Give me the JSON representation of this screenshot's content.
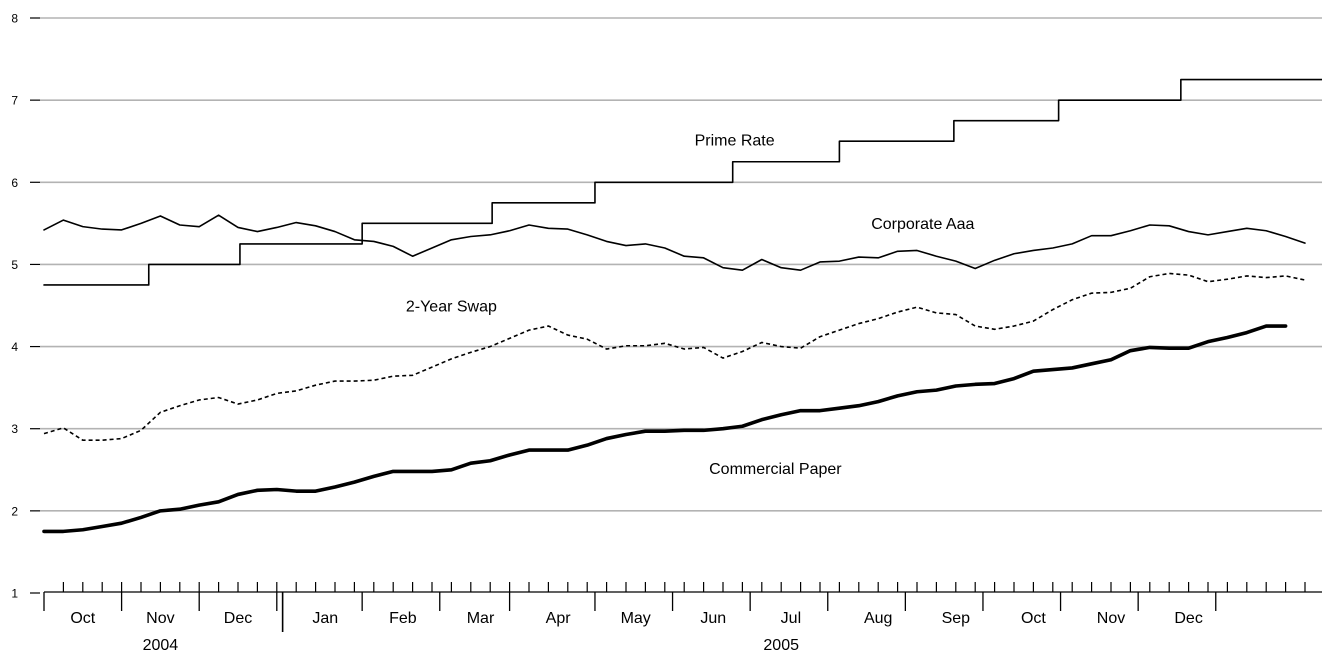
{
  "chart_data": {
    "type": "line",
    "title": "",
    "xlabel": "",
    "ylabel": "",
    "ylim": [
      1,
      8
    ],
    "yticks": [
      1,
      2,
      3,
      4,
      5,
      6,
      7,
      8
    ],
    "grid": true,
    "legend": "none",
    "x_range_weeks": [
      0,
      66.5
    ],
    "month_labels": [
      {
        "label": "Oct",
        "week": 2
      },
      {
        "label": "Nov",
        "week": 6
      },
      {
        "label": "Dec",
        "week": 10
      },
      {
        "label": "Jan",
        "week": 14.5
      },
      {
        "label": "Feb",
        "week": 18.5
      },
      {
        "label": "Mar",
        "week": 22.5
      },
      {
        "label": "Apr",
        "week": 26.5
      },
      {
        "label": "May",
        "week": 30.5
      },
      {
        "label": "Jun",
        "week": 34.5
      },
      {
        "label": "Jul",
        "week": 38.5
      },
      {
        "label": "Aug",
        "week": 43
      },
      {
        "label": "Sep",
        "week": 47
      },
      {
        "label": "Oct",
        "week": 51
      },
      {
        "label": "Nov",
        "week": 55
      },
      {
        "label": "Dec",
        "week": 59
      }
    ],
    "year_labels": [
      {
        "label": "2004",
        "week": 6
      },
      {
        "label": "2005",
        "week": 38
      }
    ],
    "month_boundaries": [
      0,
      4,
      8,
      12,
      16.4,
      20.4,
      24,
      28.4,
      32.4,
      36.4,
      40.4,
      44.4,
      48.4,
      52.4,
      56.4,
      60.4
    ],
    "year_boundary": 12.3,
    "annotations": [
      {
        "text": "Prime Rate",
        "week": 35.6,
        "value": 6.45
      },
      {
        "text": "Corporate Aaa",
        "week": 45.3,
        "value": 5.43
      },
      {
        "text": "2-Year Swap",
        "week": 21,
        "value": 4.43
      },
      {
        "text": "Commercial Paper",
        "week": 37.7,
        "value": 2.45
      }
    ],
    "series": [
      {
        "name": "Prime Rate",
        "style": "step",
        "color": "#000000",
        "points": [
          [
            0,
            4.75
          ],
          [
            5.4,
            5.0
          ],
          [
            10.1,
            5.25
          ],
          [
            16.4,
            5.5
          ],
          [
            23.1,
            5.75
          ],
          [
            28.4,
            6.0
          ],
          [
            35.5,
            6.25
          ],
          [
            41,
            6.5
          ],
          [
            46.9,
            6.75
          ],
          [
            52.3,
            7.0
          ],
          [
            58.6,
            7.25
          ],
          [
            60.2,
            7.25
          ]
        ]
      },
      {
        "name": "Corporate Aaa",
        "style": "solid",
        "color": "#000000",
        "values": [
          5.42,
          5.54,
          5.46,
          5.43,
          5.42,
          5.5,
          5.59,
          5.48,
          5.46,
          5.6,
          5.45,
          5.4,
          5.45,
          5.51,
          5.47,
          5.4,
          5.3,
          5.28,
          5.22,
          5.1,
          5.2,
          5.3,
          5.34,
          5.36,
          5.41,
          5.48,
          5.44,
          5.43,
          5.36,
          5.28,
          5.23,
          5.25,
          5.2,
          5.1,
          5.08,
          4.96,
          4.93,
          5.06,
          4.96,
          4.93,
          5.03,
          5.04,
          5.09,
          5.08,
          5.16,
          5.17,
          5.1,
          5.04,
          4.95,
          5.05,
          5.13,
          5.17,
          5.2,
          5.25,
          5.35,
          5.35,
          5.41,
          5.48,
          5.47,
          5.4,
          5.36,
          5.4,
          5.44,
          5.41,
          5.34,
          5.26
        ]
      },
      {
        "name": "2-Year Swap",
        "style": "dashed",
        "color": "#000000",
        "values": [
          2.94,
          3.01,
          2.86,
          2.86,
          2.88,
          2.98,
          3.2,
          3.28,
          3.35,
          3.38,
          3.3,
          3.35,
          3.43,
          3.46,
          3.53,
          3.58,
          3.58,
          3.59,
          3.64,
          3.65,
          3.75,
          3.85,
          3.93,
          4.0,
          4.1,
          4.2,
          4.25,
          4.14,
          4.09,
          3.97,
          4.01,
          4.01,
          4.04,
          3.97,
          3.99,
          3.86,
          3.94,
          4.05,
          4.0,
          3.98,
          4.12,
          4.2,
          4.28,
          4.34,
          4.42,
          4.48,
          4.41,
          4.39,
          4.25,
          4.21,
          4.25,
          4.31,
          4.45,
          4.57,
          4.65,
          4.66,
          4.71,
          4.85,
          4.89,
          4.87,
          4.79,
          4.82,
          4.86,
          4.84,
          4.86,
          4.81
        ]
      },
      {
        "name": "Commercial Paper",
        "style": "bold",
        "color": "#000000",
        "values": [
          1.75,
          1.75,
          1.77,
          1.81,
          1.85,
          1.92,
          2.0,
          2.02,
          2.07,
          2.11,
          2.2,
          2.25,
          2.26,
          2.24,
          2.24,
          2.29,
          2.35,
          2.42,
          2.48,
          2.48,
          2.48,
          2.5,
          2.58,
          2.61,
          2.68,
          2.74,
          2.74,
          2.74,
          2.8,
          2.88,
          2.93,
          2.97,
          2.97,
          2.98,
          2.98,
          3.0,
          3.03,
          3.11,
          3.17,
          3.22,
          3.22,
          3.25,
          3.28,
          3.33,
          3.4,
          3.45,
          3.47,
          3.52,
          3.54,
          3.55,
          3.61,
          3.7,
          3.72,
          3.74,
          3.79,
          3.84,
          3.95,
          3.99,
          3.98,
          3.98,
          4.06,
          4.11,
          4.17,
          4.25,
          4.25
        ]
      }
    ]
  }
}
